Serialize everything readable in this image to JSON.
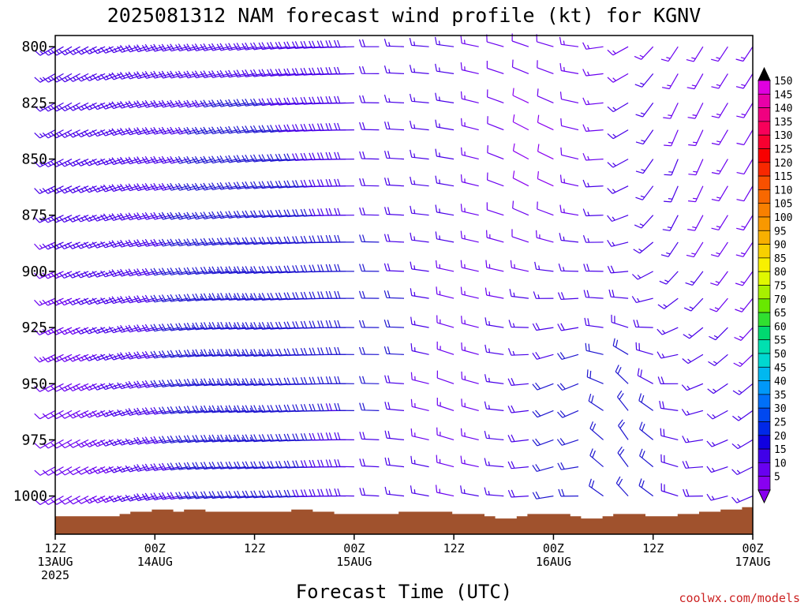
{
  "chart_data": {
    "type": "wind-barb time-height cross section",
    "title": "2025081312 NAM forecast wind profile (kt) for KGNV",
    "xlabel": "Forecast Time (UTC)",
    "ylabel": "",
    "units": "kt",
    "credit": "coolwx.com/models",
    "yaxis": {
      "scale": "linear-inverted",
      "min_hpa": 795,
      "max_hpa": 1017,
      "ticks": [
        {
          "value": 800,
          "label": "800"
        },
        {
          "value": 825,
          "label": "825"
        },
        {
          "value": 850,
          "label": "850"
        },
        {
          "value": 875,
          "label": "875"
        },
        {
          "value": 900,
          "label": "900"
        },
        {
          "value": 925,
          "label": "925"
        },
        {
          "value": 950,
          "label": "950"
        },
        {
          "value": 975,
          "label": "975"
        },
        {
          "value": 1000,
          "label": "1000"
        }
      ]
    },
    "xaxis": {
      "min_hour": 0,
      "max_hour": 84,
      "ticks": [
        {
          "hour": 0,
          "lines": [
            "12Z",
            "13AUG",
            "2025"
          ]
        },
        {
          "hour": 12,
          "lines": [
            "00Z",
            "14AUG"
          ]
        },
        {
          "hour": 24,
          "lines": [
            "12Z"
          ]
        },
        {
          "hour": 36,
          "lines": [
            "00Z",
            "15AUG"
          ]
        },
        {
          "hour": 48,
          "lines": [
            "12Z"
          ]
        },
        {
          "hour": 60,
          "lines": [
            "00Z",
            "16AUG"
          ]
        },
        {
          "hour": 72,
          "lines": [
            "12Z"
          ]
        },
        {
          "hour": 84,
          "lines": [
            "00Z",
            "17AUG"
          ]
        }
      ]
    },
    "hourly_interval_ends_hour": 36,
    "later_interval_hours": 3,
    "surface_pressure_hpa": [
      1009,
      1009,
      1009,
      1009,
      1009,
      1009,
      1008,
      1007,
      1007,
      1006,
      1006,
      1007,
      1006,
      1006,
      1007,
      1007,
      1007,
      1007,
      1007,
      1007,
      1007,
      1007,
      1006,
      1006,
      1007,
      1007,
      1008,
      1008,
      1008,
      1008,
      1008,
      1008,
      1007,
      1007,
      1007,
      1007,
      1007,
      1008,
      1008,
      1008,
      1009,
      1010,
      1010,
      1009,
      1008,
      1008,
      1008,
      1008,
      1009,
      1010,
      1010,
      1009,
      1008,
      1008,
      1008,
      1009,
      1009,
      1009,
      1008,
      1008,
      1007,
      1007,
      1006,
      1006,
      1005
    ],
    "wind_model": {
      "description": "wind direction (deg, from) and speed (kt) estimated from barbs",
      "points": [
        {
          "hour": 0,
          "p": 800,
          "dir": 240,
          "spd": 15
        },
        {
          "hour": 0,
          "p": 1000,
          "dir": 240,
          "spd": 10
        },
        {
          "hour": 18,
          "p": 850,
          "dir": 255,
          "spd": 20
        },
        {
          "hour": 22,
          "p": 930,
          "dir": 265,
          "spd": 25
        },
        {
          "hour": 40,
          "p": 925,
          "dir": 270,
          "spd": 22
        },
        {
          "hour": 48,
          "p": 950,
          "dir": 290,
          "spd": 12
        },
        {
          "hour": 58,
          "p": 850,
          "dir": 300,
          "spd": 8
        },
        {
          "hour": 62,
          "p": 960,
          "dir": 240,
          "spd": 22
        },
        {
          "hour": 68,
          "p": 975,
          "dir": 330,
          "spd": 22
        },
        {
          "hour": 76,
          "p": 850,
          "dir": 200,
          "spd": 15
        },
        {
          "hour": 84,
          "p": 850,
          "dir": 210,
          "spd": 12
        }
      ],
      "pressure_levels_hpa": [
        800,
        812,
        825,
        837,
        850,
        862,
        875,
        887,
        900,
        912,
        925,
        937,
        950,
        962,
        975,
        987,
        1000
      ]
    },
    "colorbar": {
      "min": 5,
      "max": 150,
      "step": 5,
      "labels": [
        "150",
        "145",
        "140",
        "135",
        "130",
        "125",
        "120",
        "115",
        "110",
        "105",
        "100",
        "95",
        "90",
        "85",
        "80",
        "75",
        "70",
        "65",
        "60",
        "55",
        "50",
        "45",
        "40",
        "35",
        "30",
        "25",
        "20",
        "15",
        "10",
        "5"
      ],
      "colors": [
        "#e000e0",
        "#e800a8",
        "#f00080",
        "#f8005a",
        "#f80030",
        "#f80000",
        "#f82800",
        "#f85000",
        "#f86800",
        "#f88000",
        "#f89800",
        "#f8b000",
        "#f8d000",
        "#f8f000",
        "#e0f800",
        "#a8f000",
        "#68e800",
        "#30e030",
        "#00d870",
        "#00e0b0",
        "#00d8d0",
        "#00b8f0",
        "#0098f8",
        "#0070f8",
        "#0048f0",
        "#0028e8",
        "#1000e0",
        "#4000e8",
        "#6800f0",
        "#8800f0"
      ],
      "over_color": "#000000",
      "under_color": "#8800f0"
    },
    "ground_color": "#a0522d",
    "plot_background": "#ffffff"
  }
}
